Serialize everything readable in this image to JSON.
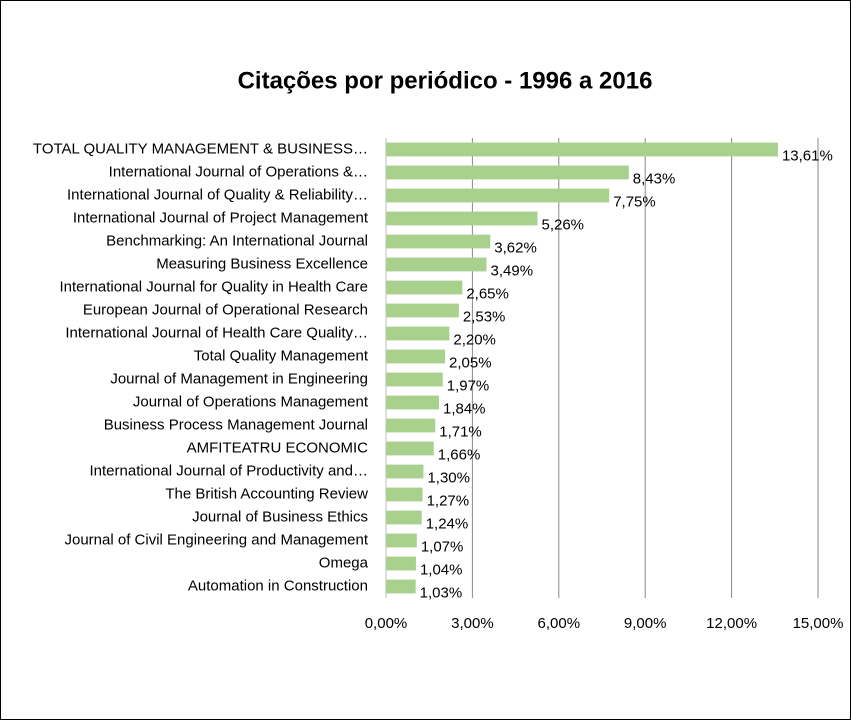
{
  "chart_data": {
    "type": "hbar",
    "title": "Citações por periódico - 1996 a 2016",
    "categories": [
      "TOTAL QUALITY MANAGEMENT & BUSINESS…",
      "International Journal of Operations &…",
      "International Journal of Quality & Reliability…",
      "International Journal of Project Management",
      "Benchmarking: An International Journal",
      "Measuring Business Excellence",
      "International Journal for Quality in Health Care",
      "European Journal of Operational Research",
      "International Journal of Health Care Quality…",
      "Total Quality Management",
      "Journal of Management in Engineering",
      "Journal of Operations Management",
      "Business Process Management Journal",
      "AMFITEATRU ECONOMIC",
      "International Journal of Productivity and…",
      "The British Accounting Review",
      "Journal of Business Ethics",
      "Journal of Civil Engineering and Management",
      "Omega",
      "Automation in Construction"
    ],
    "values": [
      13.61,
      8.43,
      7.75,
      5.26,
      3.62,
      3.49,
      2.65,
      2.53,
      2.2,
      2.05,
      1.97,
      1.84,
      1.71,
      1.66,
      1.3,
      1.27,
      1.24,
      1.07,
      1.04,
      1.03
    ],
    "value_labels": [
      "13,61%",
      "8,43%",
      "7,75%",
      "5,26%",
      "3,62%",
      "3,49%",
      "2,65%",
      "2,53%",
      "2,20%",
      "2,05%",
      "1,97%",
      "1,84%",
      "1,71%",
      "1,66%",
      "1,30%",
      "1,27%",
      "1,24%",
      "1,07%",
      "1,04%",
      "1,03%"
    ],
    "color": "#a9d18e",
    "xlim": [
      0,
      15
    ],
    "xticks": [
      {
        "value": 0,
        "label": "0,00%"
      },
      {
        "value": 3,
        "label": "3,00%"
      },
      {
        "value": 6,
        "label": "6,00%"
      },
      {
        "value": 9,
        "label": "9,00%"
      },
      {
        "value": 12,
        "label": "12,00%"
      },
      {
        "value": 15,
        "label": "15,00%"
      }
    ],
    "grid": true
  }
}
